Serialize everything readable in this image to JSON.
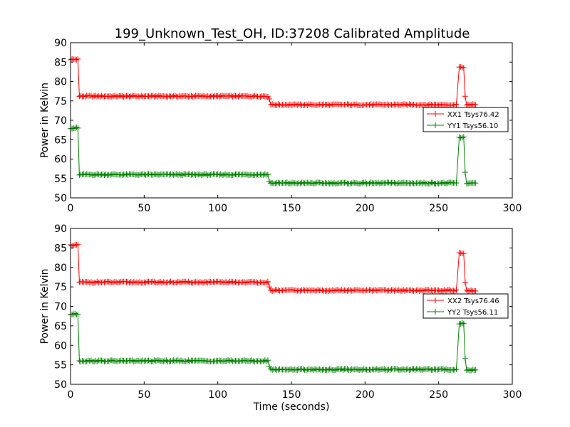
{
  "title": "199_Unknown_Test_OH, ID:37208 Calibrated Amplitude",
  "colors": {
    "red": "#ff0000",
    "green": "#008000",
    "axis": "#000000",
    "background": "#ffffff"
  },
  "chart_data": [
    {
      "type": "line",
      "title": "199_Unknown_Test_OH, ID:37208 Calibrated Amplitude",
      "xlabel": "",
      "ylabel": "Power in Kelvin",
      "xlim": [
        0,
        300
      ],
      "ylim": [
        50,
        90
      ],
      "xticks": [
        "0",
        "50",
        "100",
        "150",
        "200",
        "250",
        "300"
      ],
      "yticks": [
        "50",
        "55",
        "60",
        "65",
        "70",
        "75",
        "80",
        "85",
        "90"
      ],
      "grid": false,
      "marker": "+",
      "legend_position": "right",
      "series": [
        {
          "name": "XX1 Tsys76.42",
          "color": "#ff0000",
          "segments": [
            {
              "from": 0,
              "to": 5,
              "value": 85.7
            },
            {
              "from": 6,
              "to": 134,
              "value": 76.2
            },
            {
              "from": 136,
              "to": 262,
              "value": 74.0
            },
            {
              "from": 264,
              "to": 267,
              "value": 83.6
            },
            {
              "from": 269,
              "to": 275,
              "value": 74.0
            }
          ],
          "transitions": [
            {
              "x": 135,
              "value": 75.5
            },
            {
              "x": 268,
              "value": 76.2
            }
          ]
        },
        {
          "name": "YY1 Tsys56.10",
          "color": "#008000",
          "segments": [
            {
              "from": 0,
              "to": 5,
              "value": 68.0
            },
            {
              "from": 6,
              "to": 134,
              "value": 56.0
            },
            {
              "from": 136,
              "to": 262,
              "value": 53.8
            },
            {
              "from": 264,
              "to": 267,
              "value": 65.6
            },
            {
              "from": 269,
              "to": 275,
              "value": 53.7
            }
          ],
          "transitions": [
            {
              "x": 135,
              "value": 54.2
            },
            {
              "x": 268,
              "value": 56.6
            }
          ]
        }
      ]
    },
    {
      "type": "line",
      "title": "",
      "xlabel": "Time (seconds)",
      "ylabel": "Power in Kelvin",
      "xlim": [
        0,
        300
      ],
      "ylim": [
        50,
        90
      ],
      "xticks": [
        "0",
        "50",
        "100",
        "150",
        "200",
        "250",
        "300"
      ],
      "yticks": [
        "50",
        "55",
        "60",
        "65",
        "70",
        "75",
        "80",
        "85",
        "90"
      ],
      "grid": false,
      "marker": "+",
      "legend_position": "right",
      "series": [
        {
          "name": "XX2 Tsys76.46",
          "color": "#ff0000",
          "segments": [
            {
              "from": 0,
              "to": 5,
              "value": 85.7
            },
            {
              "from": 6,
              "to": 134,
              "value": 76.2
            },
            {
              "from": 136,
              "to": 262,
              "value": 74.1
            },
            {
              "from": 264,
              "to": 267,
              "value": 83.6
            },
            {
              "from": 269,
              "to": 275,
              "value": 74.0
            }
          ],
          "transitions": [
            {
              "x": 135,
              "value": 75.0
            },
            {
              "x": 268,
              "value": 76.2
            }
          ]
        },
        {
          "name": "YY2 Tsys56.11",
          "color": "#008000",
          "segments": [
            {
              "from": 0,
              "to": 5,
              "value": 68.0
            },
            {
              "from": 6,
              "to": 134,
              "value": 56.0
            },
            {
              "from": 136,
              "to": 262,
              "value": 53.8
            },
            {
              "from": 264,
              "to": 267,
              "value": 65.6
            },
            {
              "from": 269,
              "to": 275,
              "value": 53.7
            }
          ],
          "transitions": [
            {
              "x": 135,
              "value": 54.5
            },
            {
              "x": 268,
              "value": 56.6
            }
          ]
        }
      ]
    }
  ]
}
